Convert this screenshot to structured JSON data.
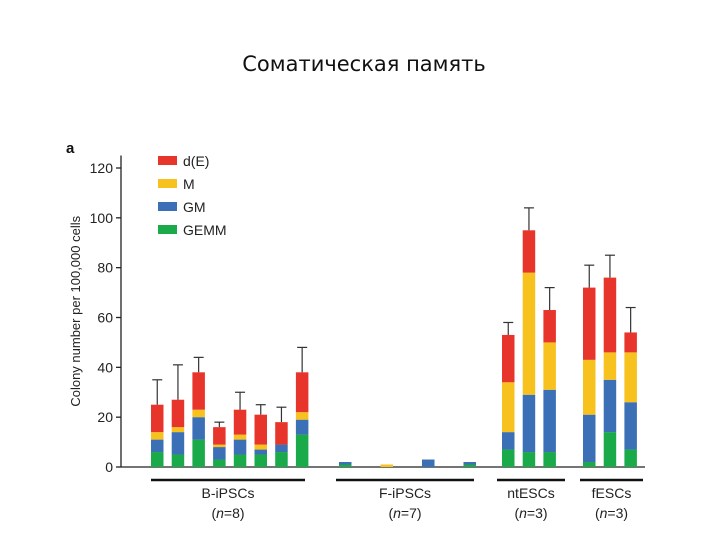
{
  "slide": {
    "title": "Соматическая память"
  },
  "chart_data": {
    "type": "bar",
    "stacked": true,
    "panel_label": "a",
    "title": "",
    "xlabel": "",
    "ylabel": "Colony number per 100,000 cells",
    "ylim": [
      0,
      125
    ],
    "yticks": [
      0,
      20,
      40,
      60,
      80,
      100,
      120
    ],
    "grid": false,
    "legend_position": "top-left",
    "series": [
      {
        "name": "GEMM",
        "color": "#1aaa4a"
      },
      {
        "name": "GM",
        "color": "#3b6fb6"
      },
      {
        "name": "M",
        "color": "#f7c21e"
      },
      {
        "name": "d(E)",
        "color": "#e8352b"
      }
    ],
    "legend_order": [
      "d(E)",
      "M",
      "GM",
      "GEMM"
    ],
    "groups": [
      {
        "label": "B-iPSCs",
        "n_prefix": "(",
        "n_italic": "n",
        "n_suffix": "=8)",
        "bars": [
          {
            "values": [
              6,
              5,
              3,
              11
            ],
            "error": 35
          },
          {
            "values": [
              5,
              9,
              2,
              11
            ],
            "error": 41
          },
          {
            "values": [
              11,
              9,
              3,
              15
            ],
            "error": 44
          },
          {
            "values": [
              3,
              5,
              1,
              7
            ],
            "error": 18
          },
          {
            "values": [
              5,
              6,
              2,
              10
            ],
            "error": 30
          },
          {
            "values": [
              5,
              2,
              2,
              12
            ],
            "error": 25
          },
          {
            "values": [
              6,
              3,
              0,
              9
            ],
            "error": 24
          },
          {
            "values": [
              13,
              6,
              3,
              16
            ],
            "error": 48
          }
        ]
      },
      {
        "label": "F-iPSCs",
        "n_prefix": "(",
        "n_italic": "n",
        "n_suffix": "=7)",
        "bars": [
          {
            "values": [
              1,
              1,
              0,
              0
            ],
            "error": null
          },
          {
            "values": [
              0,
              0,
              1,
              0
            ],
            "error": null
          },
          {
            "values": [
              0,
              3,
              0,
              0
            ],
            "error": null
          },
          {
            "values": [
              1,
              1,
              0,
              0
            ],
            "error": null
          }
        ]
      },
      {
        "label": "ntESCs",
        "n_prefix": "(",
        "n_italic": "n",
        "n_suffix": "=3)",
        "bars": [
          {
            "values": [
              7,
              7,
              20,
              19
            ],
            "error": 58
          },
          {
            "values": [
              6,
              23,
              49,
              17
            ],
            "error": 104
          },
          {
            "values": [
              6,
              25,
              19,
              13
            ],
            "error": 72
          }
        ]
      },
      {
        "label": "fESCs",
        "n_prefix": "(",
        "n_italic": "n",
        "n_suffix": "=3)",
        "bars": [
          {
            "values": [
              2,
              19,
              22,
              29
            ],
            "error": 81
          },
          {
            "values": [
              14,
              21,
              11,
              30
            ],
            "error": 85
          },
          {
            "values": [
              7,
              19,
              20,
              8
            ],
            "error": 64
          }
        ]
      }
    ]
  }
}
